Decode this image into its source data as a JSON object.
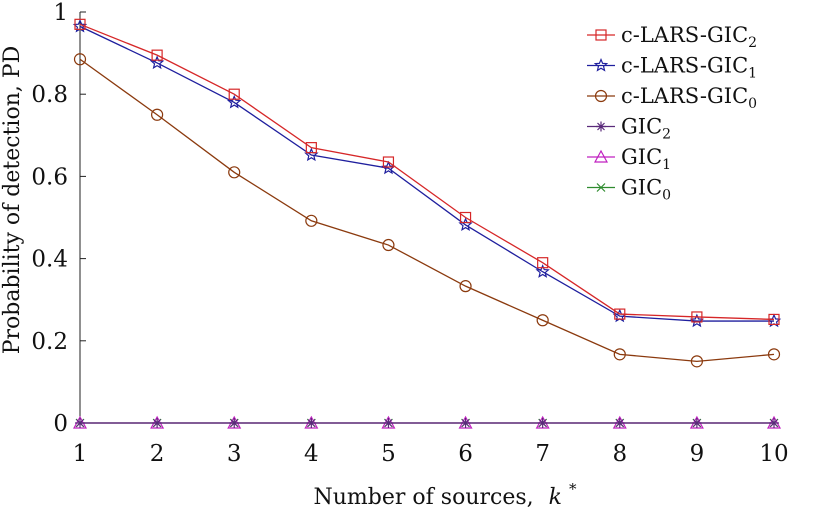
{
  "chart_data": {
    "type": "line",
    "title": "",
    "xlabel": "Number of sources,",
    "xlabel_var": "k",
    "xlabel_sup": "*",
    "ylabel": "Probability of detection, PD",
    "x": [
      1,
      2,
      3,
      4,
      5,
      6,
      7,
      8,
      9,
      10
    ],
    "xlim": [
      1,
      10
    ],
    "ylim": [
      0,
      1
    ],
    "xticks": [
      "1",
      "2",
      "3",
      "4",
      "5",
      "6",
      "7",
      "8",
      "9",
      "10"
    ],
    "yticks": [
      {
        "value": 0,
        "label": "0"
      },
      {
        "value": 0.2,
        "label": "0.2"
      },
      {
        "value": 0.4,
        "label": "0.4"
      },
      {
        "value": 0.6,
        "label": "0.6"
      },
      {
        "value": 0.8,
        "label": "0.8"
      },
      {
        "value": 1,
        "label": "1"
      }
    ],
    "grid": false,
    "legend_position": "top-right",
    "series": [
      {
        "name": "c-LARS-GIC",
        "sub": "2",
        "color": "#d62728",
        "marker": "square",
        "values": [
          0.97,
          0.895,
          0.8,
          0.67,
          0.635,
          0.5,
          0.39,
          0.265,
          0.258,
          0.252
        ]
      },
      {
        "name": "c-LARS-GIC",
        "sub": "1",
        "color": "#1f1f9e",
        "marker": "star",
        "values": [
          0.965,
          0.876,
          0.78,
          0.652,
          0.62,
          0.482,
          0.368,
          0.26,
          0.248,
          0.248
        ]
      },
      {
        "name": "c-LARS-GIC",
        "sub": "0",
        "color": "#8b3a0e",
        "marker": "circle",
        "values": [
          0.885,
          0.75,
          0.61,
          0.492,
          0.433,
          0.333,
          0.25,
          0.167,
          0.15,
          0.167
        ]
      },
      {
        "name": "GIC",
        "sub": "2",
        "color": "#5a2a7a",
        "marker": "asterisk",
        "values": [
          0,
          0,
          0,
          0,
          0,
          0,
          0,
          0,
          0,
          0
        ]
      },
      {
        "name": "GIC",
        "sub": "1",
        "color": "#c020c0",
        "marker": "triangle",
        "values": [
          0,
          0,
          0,
          0,
          0,
          0,
          0,
          0,
          0,
          0
        ]
      },
      {
        "name": "GIC",
        "sub": "0",
        "color": "#2e8b2e",
        "marker": "cross",
        "values": [
          0,
          0,
          0,
          0,
          0,
          0,
          0,
          0,
          0,
          0
        ]
      }
    ]
  }
}
